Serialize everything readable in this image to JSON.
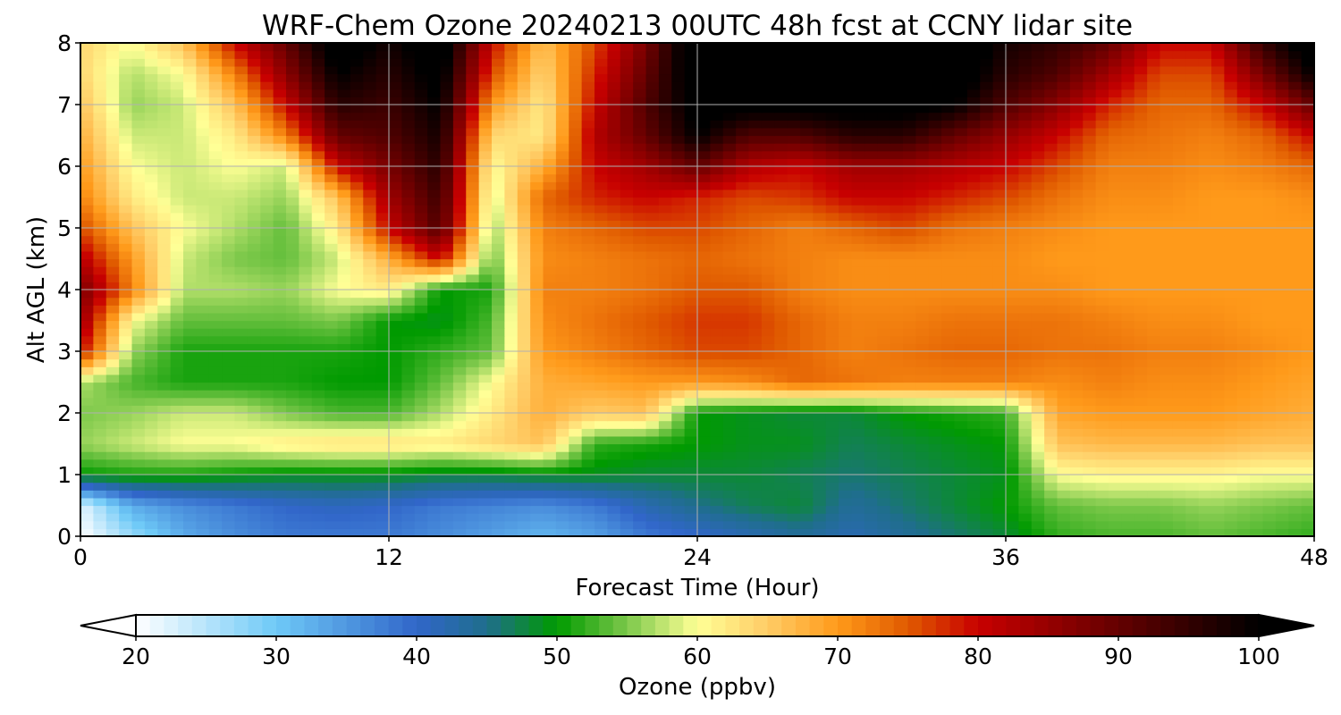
{
  "chart_data": {
    "type": "heatmap",
    "title": "WRF-Chem Ozone  20240213 00UTC 48h fcst at CCNY lidar site",
    "xlabel": "Forecast Time (Hour)",
    "ylabel": "Alt AGL (km)",
    "xlim": [
      0,
      48
    ],
    "ylim": [
      0,
      8
    ],
    "xticks": [
      0,
      12,
      24,
      36,
      48
    ],
    "yticks": [
      0,
      1,
      2,
      3,
      4,
      5,
      6,
      7,
      8
    ],
    "grid": true,
    "x": [
      0,
      2,
      4,
      6,
      8,
      10,
      12,
      14,
      16,
      18,
      20,
      22,
      24,
      26,
      28,
      30,
      32,
      34,
      36,
      38,
      40,
      42,
      44,
      46,
      48
    ],
    "y": [
      0,
      0.5,
      1,
      1.5,
      2,
      2.5,
      3,
      3.5,
      4,
      4.5,
      5,
      5.5,
      6,
      6.5,
      7,
      7.5,
      8
    ],
    "z": [
      [
        20,
        27,
        33,
        36,
        38,
        38,
        38,
        36,
        34,
        32,
        34,
        38,
        40,
        42,
        44,
        42,
        44,
        46,
        48,
        52,
        53,
        53,
        54,
        53,
        52
      ],
      [
        22,
        33,
        36,
        38,
        40,
        41,
        40,
        38,
        37,
        36,
        38,
        42,
        45,
        47,
        48,
        44,
        46,
        48,
        50,
        54,
        55,
        55,
        56,
        55,
        54
      ],
      [
        50,
        51,
        51,
        50,
        49,
        49,
        49,
        48,
        48,
        49,
        49,
        48,
        48,
        48,
        47,
        46,
        47,
        48,
        49,
        60,
        61,
        61,
        61,
        60,
        60
      ],
      [
        56,
        58,
        60,
        60,
        62,
        63,
        63,
        62,
        64,
        66,
        52,
        51,
        50,
        49,
        49,
        47,
        48,
        49,
        50,
        66,
        67,
        67,
        67,
        66,
        66
      ],
      [
        55,
        56,
        58,
        58,
        55,
        53,
        53,
        57,
        62,
        68,
        65,
        66,
        50,
        49,
        48,
        48,
        50,
        51,
        52,
        69,
        70,
        70,
        70,
        69,
        68
      ],
      [
        57,
        53,
        51,
        51,
        51,
        50,
        50,
        54,
        60,
        68,
        69,
        70,
        70,
        71,
        74,
        73,
        72,
        72,
        72,
        71,
        72,
        71,
        71,
        70,
        69
      ],
      [
        80,
        56,
        51,
        51,
        51,
        51,
        50,
        52,
        54,
        70,
        72,
        74,
        76,
        76,
        74,
        72,
        73,
        74,
        74,
        73,
        73,
        72,
        72,
        71,
        70
      ],
      [
        85,
        60,
        54,
        54,
        54,
        55,
        50,
        49,
        53,
        71,
        73,
        75,
        77,
        77,
        74,
        72,
        72,
        73,
        73,
        73,
        72,
        71,
        71,
        70,
        70
      ],
      [
        88,
        72,
        57,
        57,
        56,
        60,
        62,
        50,
        51,
        72,
        72,
        73,
        75,
        75,
        72,
        71,
        71,
        71,
        71,
        71,
        70,
        70,
        70,
        70,
        70
      ],
      [
        82,
        70,
        58,
        55,
        54,
        58,
        68,
        80,
        54,
        71,
        72,
        73,
        74,
        73,
        72,
        71,
        71,
        71,
        71,
        70,
        70,
        70,
        70,
        70,
        70
      ],
      [
        76,
        66,
        60,
        57,
        54,
        62,
        80,
        92,
        56,
        72,
        74,
        76,
        76,
        74,
        72,
        74,
        76,
        73,
        72,
        71,
        70,
        70,
        70,
        70,
        70
      ],
      [
        72,
        62,
        58,
        58,
        56,
        66,
        84,
        94,
        58,
        74,
        78,
        80,
        78,
        76,
        77,
        80,
        80,
        78,
        76,
        73,
        71,
        71,
        70,
        70,
        71
      ],
      [
        70,
        60,
        58,
        60,
        58,
        80,
        88,
        96,
        60,
        68,
        80,
        84,
        90,
        82,
        80,
        84,
        84,
        82,
        80,
        76,
        72,
        72,
        71,
        72,
        74
      ],
      [
        68,
        58,
        58,
        62,
        72,
        90,
        92,
        98,
        64,
        62,
        82,
        90,
        100,
        92,
        92,
        96,
        96,
        90,
        85,
        80,
        74,
        73,
        72,
        74,
        80
      ],
      [
        66,
        56,
        58,
        66,
        80,
        96,
        94,
        100,
        70,
        62,
        80,
        92,
        102,
        102,
        102,
        102,
        102,
        100,
        92,
        86,
        78,
        74,
        74,
        80,
        90
      ],
      [
        64,
        57,
        60,
        72,
        86,
        100,
        96,
        102,
        76,
        64,
        78,
        90,
        104,
        104,
        104,
        104,
        104,
        104,
        96,
        92,
        84,
        76,
        76,
        88,
        100
      ],
      [
        64,
        60,
        66,
        80,
        90,
        104,
        98,
        104,
        80,
        66,
        76,
        88,
        105,
        105,
        105,
        105,
        105,
        105,
        98,
        95,
        90,
        80,
        80,
        95,
        104
      ]
    ],
    "colorbar": {
      "label": "Ozone  (ppbv)",
      "min": 20,
      "max": 100,
      "ticks": [
        "20",
        "30",
        "40",
        "50",
        "60",
        "70",
        "80",
        "90",
        "100"
      ],
      "extend": "both",
      "color_stops": [
        [
          20,
          "#ffffff"
        ],
        [
          30,
          "#6ec9f7"
        ],
        [
          40,
          "#3166c9"
        ],
        [
          45,
          "#1f6e8c"
        ],
        [
          50,
          "#009a00"
        ],
        [
          55,
          "#7cc84a"
        ],
        [
          60,
          "#ffff96"
        ],
        [
          65,
          "#ffcc66"
        ],
        [
          70,
          "#ff9a1a"
        ],
        [
          75,
          "#e05a00"
        ],
        [
          80,
          "#c80000"
        ],
        [
          90,
          "#640000"
        ],
        [
          100,
          "#000000"
        ]
      ]
    }
  }
}
